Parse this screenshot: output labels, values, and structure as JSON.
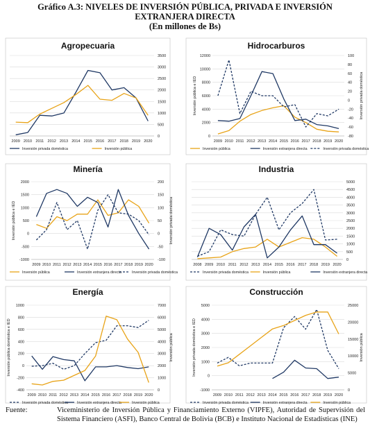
{
  "header": {
    "line1": "Gráfico A.3: NIVELES DE INVERSIÓN PÚBLICA, PRIVADA E INVERSIÓN",
    "line2": "EXTRANJERA DIRECTA",
    "line3": "(En  millones de Bs)"
  },
  "footer": {
    "label": "Fuente:",
    "text": "Viceministerio de Inversión Pública y Financiamiento Externo (VIPFE), Autoridad de Supervisión del Sistema Financiero (ASFI), Banco Central de Bolivia (BCB) e Instituto Nacional de Estadísticas (INE)"
  },
  "colors": {
    "navy": "#1f3864",
    "gold": "#e8a317",
    "grid": "#d9d9d9",
    "axis": "#bfbfbf"
  },
  "chart_data": [
    {
      "type": "line",
      "title": "Agropecuaria",
      "x": [
        "2009",
        "2010",
        "2011",
        "2012",
        "2013",
        "2014",
        "2015",
        "2016",
        "2017",
        "2018",
        "2019",
        "2020"
      ],
      "left_axis": null,
      "right_axis": {
        "label": "",
        "ticks": [
          "0",
          "500",
          "1000",
          "1500",
          "2000",
          "2500",
          "3000",
          "3500"
        ],
        "ylim": [
          0,
          3500
        ]
      },
      "series": [
        {
          "name": "Inversión privada doméstica",
          "color": "navy",
          "dash": "solid",
          "axis": "right",
          "values": [
            50,
            150,
            900,
            870,
            1000,
            1900,
            2850,
            2750,
            2000,
            2100,
            1650,
            650
          ]
        },
        {
          "name": "Inversión pública",
          "color": "gold",
          "dash": "solid",
          "axis": "right",
          "values": [
            600,
            580,
            950,
            1200,
            1450,
            1800,
            2200,
            1600,
            1550,
            1850,
            1650,
            900
          ]
        }
      ]
    },
    {
      "type": "line",
      "title": "Hidrocarburos",
      "x": [
        "2009",
        "2010",
        "2011",
        "2012",
        "2013",
        "2014",
        "2015",
        "2016",
        "2017",
        "2018",
        "2019",
        "2020"
      ],
      "left_axis": {
        "label": "Inversión pública e IED",
        "ticks": [
          "0",
          "2000",
          "4000",
          "6000",
          "8000",
          "10000",
          "12000"
        ],
        "ylim": [
          0,
          12000
        ]
      },
      "right_axis": {
        "label": "Inversión privada doméstica",
        "ticks": [
          "-80",
          "-60",
          "-40",
          "-20",
          "0",
          "20",
          "40",
          "60",
          "80",
          "100"
        ],
        "ylim": [
          -80,
          100
        ]
      },
      "series": [
        {
          "name": "Inversión pública",
          "color": "gold",
          "dash": "solid",
          "axis": "left",
          "values": [
            300,
            800,
            2200,
            3200,
            3800,
            4200,
            4500,
            2800,
            2000,
            1000,
            700,
            600
          ]
        },
        {
          "name": "Inversión extranjera directa",
          "color": "navy",
          "dash": "solid",
          "axis": "left",
          "values": [
            2300,
            2200,
            2600,
            6000,
            9600,
            9300,
            5500,
            2300,
            2500,
            1700,
            1500,
            1100
          ]
        },
        {
          "name": "Inversión privada doméstica",
          "color": "navy",
          "dash": "dash",
          "axis": "right",
          "values": [
            10,
            90,
            -30,
            20,
            10,
            10,
            -15,
            -10,
            -60,
            -30,
            -35,
            -20
          ]
        }
      ]
    },
    {
      "type": "line",
      "title": "Minería",
      "x": [
        "2009",
        "2010",
        "2011",
        "2012",
        "2013",
        "2014",
        "2015",
        "2016",
        "2017",
        "2018",
        "2019",
        "2020"
      ],
      "left_axis": {
        "label": "Inversión pública e IED",
        "ticks": [
          "-1000",
          "-500",
          "0",
          "500",
          "1000",
          "1500",
          "2000"
        ],
        "ylim": [
          -1000,
          2000
        ]
      },
      "right_axis": {
        "label": "Inversión privada doméstica",
        "ticks": [
          "-100",
          "-50",
          "0",
          "50",
          "100",
          "150",
          "200"
        ],
        "ylim": [
          -100,
          200
        ]
      },
      "series": [
        {
          "name": "Inversión pública",
          "color": "gold",
          "dash": "solid",
          "axis": "left",
          "values": [
            350,
            200,
            650,
            500,
            750,
            750,
            1300,
            700,
            800,
            1300,
            1050,
            400
          ]
        },
        {
          "name": "Inversión extranjera directa",
          "color": "navy",
          "dash": "solid",
          "axis": "left",
          "values": [
            650,
            1550,
            1700,
            1550,
            1050,
            1400,
            1200,
            250,
            1700,
            700,
            0,
            -600
          ]
        },
        {
          "name": "Inversión privada doméstica",
          "color": "navy",
          "dash": "dash",
          "axis": "right",
          "values": [
            -25,
            15,
            120,
            15,
            50,
            -60,
            90,
            150,
            80,
            75,
            50,
            -5
          ]
        }
      ]
    },
    {
      "type": "line",
      "title": "Industria",
      "x": [
        "2008",
        "2009",
        "2010",
        "2011",
        "2012",
        "2013",
        "2014",
        "2015",
        "2016",
        "2017",
        "2018",
        "2019",
        "2020"
      ],
      "left_axis": null,
      "right_axis": {
        "label": "",
        "ticks": [
          "0",
          "500",
          "1000",
          "1500",
          "2000",
          "2500",
          "3000",
          "3500",
          "4000",
          "4500",
          "5000"
        ],
        "ylim": [
          0,
          5000
        ]
      },
      "series": [
        {
          "name": "Inversión privada doméstica",
          "color": "navy",
          "dash": "dash",
          "axis": "right",
          "values": [
            200,
            500,
            1900,
            1600,
            1500,
            2900,
            4000,
            1900,
            3000,
            3600,
            4500,
            1250,
            1300
          ]
        },
        {
          "name": "Inversión pública",
          "color": "gold",
          "dash": "solid",
          "axis": "right",
          "values": [
            50,
            100,
            150,
            500,
            700,
            800,
            1300,
            800,
            1100,
            1400,
            1300,
            800,
            200
          ]
        },
        {
          "name": "Inversión extranjera directa",
          "color": "navy",
          "dash": "solid",
          "axis": "right",
          "values": [
            150,
            2000,
            1600,
            600,
            2100,
            2900,
            100,
            800,
            1900,
            2800,
            950,
            950,
            400
          ]
        }
      ]
    },
    {
      "type": "line",
      "title": "Energía",
      "x": [
        "2009",
        "2010",
        "2011",
        "2012",
        "2013",
        "2014",
        "2015",
        "2016",
        "2017",
        "2018",
        "2019",
        "2020"
      ],
      "left_axis": {
        "label": "Inversión pública doméstica e IED",
        "ticks": [
          "-400",
          "-200",
          "0",
          "200",
          "400",
          "600",
          "800",
          "1000"
        ],
        "ylim": [
          -400,
          1000
        ]
      },
      "right_axis": {
        "label": "Inversión pública",
        "ticks": [
          "0",
          "1000",
          "2000",
          "3000",
          "4000",
          "5000",
          "6000",
          "7000"
        ],
        "ylim": [
          0,
          7000
        ]
      },
      "series": [
        {
          "name": "Inversión privada doméstica",
          "color": "navy",
          "dash": "dash",
          "axis": "left",
          "values": [
            -10,
            0,
            40,
            -60,
            0,
            200,
            380,
            420,
            660,
            660,
            630,
            750
          ]
        },
        {
          "name": "Inversión extranjera directa",
          "color": "navy",
          "dash": "solid",
          "axis": "left",
          "values": [
            160,
            -60,
            150,
            100,
            80,
            -250,
            -20,
            -20,
            0,
            -30,
            -50,
            -20
          ]
        },
        {
          "name": "Inversión pública",
          "color": "gold",
          "dash": "solid",
          "axis": "right",
          "values": [
            500,
            400,
            700,
            800,
            1200,
            1600,
            2800,
            6100,
            5800,
            4200,
            3100,
            600
          ]
        }
      ]
    },
    {
      "type": "line",
      "title": "Construcción",
      "x": [
        "2009",
        "2010",
        "2011",
        "2012",
        "2013",
        "2014",
        "2015",
        "2016",
        "2017",
        "2018",
        "2019",
        "2020"
      ],
      "left_axis": {
        "label": "Inversión privada doméstica e IED",
        "ticks": [
          "-1000",
          "0",
          "1000",
          "2000",
          "3000",
          "4000",
          "5000"
        ],
        "ylim": [
          -1000,
          5000
        ]
      },
      "right_axis": {
        "label": "Inversión pública",
        "ticks": [
          "0",
          "5000",
          "10000",
          "15000",
          "20000",
          "25000"
        ],
        "ylim": [
          0,
          25000
        ]
      },
      "series": [
        {
          "name": "Inversión privada doméstica",
          "color": "navy",
          "dash": "dash",
          "axis": "left",
          "values": [
            900,
            1300,
            700,
            900,
            900,
            900,
            3400,
            4200,
            3300,
            4700,
            1800,
            500
          ]
        },
        {
          "name": "Inversión extranjera directa",
          "color": "navy",
          "dash": "solid",
          "axis": "left",
          "values": [
            null,
            null,
            null,
            null,
            null,
            -200,
            250,
            1100,
            550,
            500,
            -200,
            -100
          ]
        },
        {
          "name": "Inversión pública",
          "color": "gold",
          "dash": "solid",
          "axis": "right",
          "values": [
            7000,
            8000,
            10500,
            13000,
            15500,
            18000,
            19000,
            20500,
            22000,
            23000,
            23000,
            16500
          ]
        }
      ]
    }
  ]
}
